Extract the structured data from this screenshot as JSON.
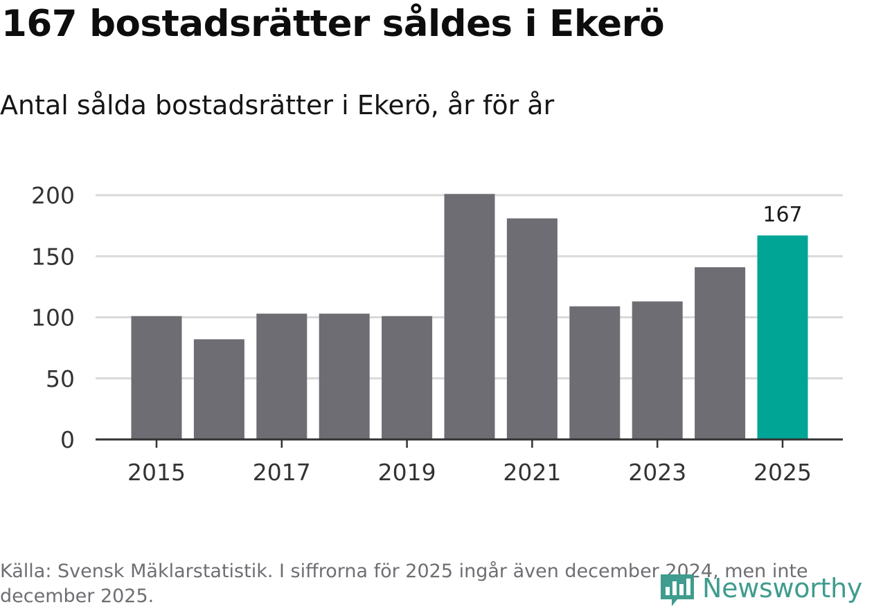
{
  "title": "167 bostadsrätter såldes i Ekerö",
  "subtitle": "Antal sålda bostadsrätter i Ekerö, år för år",
  "source": "Källa: Svensk Mäklarstatistik. I siffrorna för 2025 ingår även december 2024, men inte december 2025.",
  "logo": {
    "text": "Newsworthy",
    "icon": "bar-chart-speech-bubble-icon",
    "color": "#3f9c8e"
  },
  "chart_data": {
    "type": "bar",
    "title": "Antal sålda bostadsrätter i Ekerö, år för år",
    "xlabel": "",
    "ylabel": "",
    "categories": [
      "2015",
      "2016",
      "2017",
      "2018",
      "2019",
      "2020",
      "2021",
      "2022",
      "2023",
      "2024",
      "2025"
    ],
    "values": [
      101,
      82,
      103,
      103,
      101,
      201,
      181,
      109,
      113,
      141,
      167
    ],
    "x_tick_labels": [
      "2015",
      "2017",
      "2019",
      "2021",
      "2023",
      "2025"
    ],
    "y_ticks": [
      0,
      50,
      100,
      150,
      200
    ],
    "ylim": [
      0,
      200
    ],
    "grid": true,
    "highlight": {
      "category": "2025",
      "label": "167"
    },
    "colors": {
      "bar": "#6e6d73",
      "highlight": "#00a596",
      "grid": "#d9d9d9",
      "axis": "#333333"
    }
  }
}
